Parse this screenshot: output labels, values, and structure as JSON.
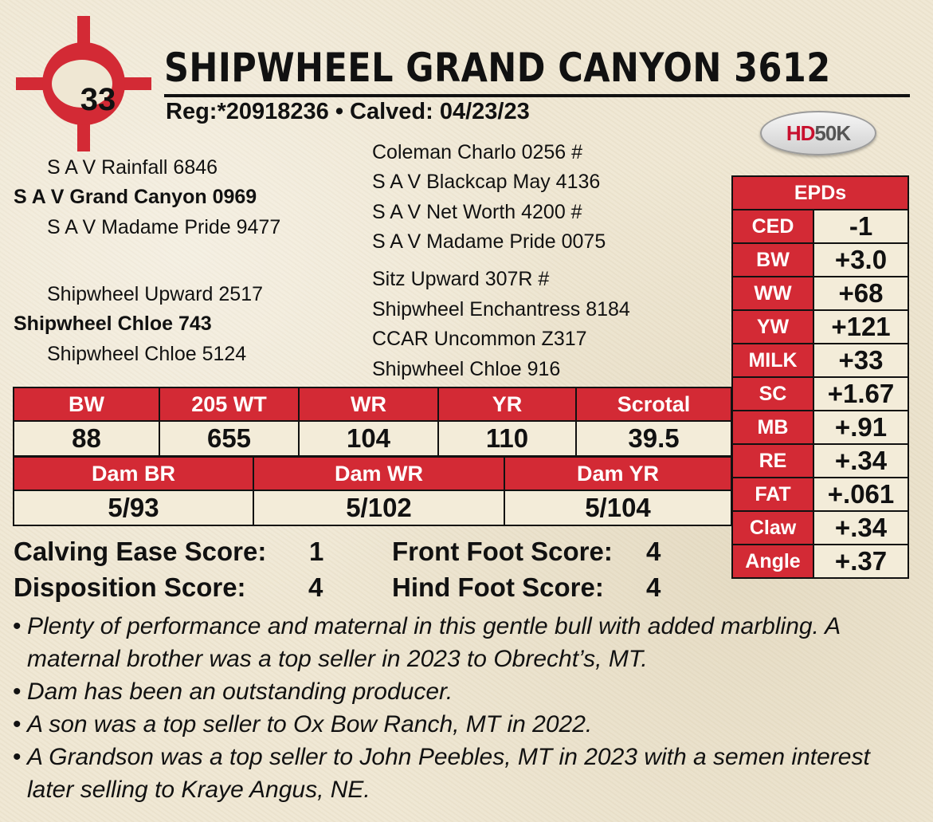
{
  "lot": {
    "number": "33"
  },
  "animal": {
    "name": "SHIPWHEEL GRAND CANYON 3612",
    "reg_line": "Reg:*20918236 • Calved: 04/23/23"
  },
  "badge": {
    "hd": "HD",
    "rest": "50K"
  },
  "pedigree": {
    "sire_sire": "S A V Rainfall 6846",
    "sire": "S A V Grand Canyon 0969",
    "sire_dam": "S A V Madame Pride 9477",
    "dam_sire": "Shipwheel Upward 2517",
    "dam": "Shipwheel Chloe 743",
    "dam_dam": "Shipwheel Chloe 5124",
    "g1": "Coleman Charlo 0256 #",
    "g2": "S A V Blackcap May 4136",
    "g3": "S A V Net Worth 4200 #",
    "g4": "S A V Madame Pride 0075",
    "g5": "Sitz Upward 307R #",
    "g6": "Shipwheel Enchantress 8184",
    "g7": "CCAR Uncommon Z317",
    "g8": "Shipwheel Chloe 916"
  },
  "epds": {
    "header": "EPDs",
    "rows": [
      {
        "label": "CED",
        "value": "-1"
      },
      {
        "label": "BW",
        "value": "+3.0"
      },
      {
        "label": "WW",
        "value": "+68"
      },
      {
        "label": "YW",
        "value": "+121"
      },
      {
        "label": "MILK",
        "value": "+33"
      },
      {
        "label": "SC",
        "value": "+1.67"
      },
      {
        "label": "MB",
        "value": "+.91"
      },
      {
        "label": "RE",
        "value": "+.34"
      },
      {
        "label": "FAT",
        "value": "+.061"
      },
      {
        "label": "Claw",
        "value": "+.34"
      },
      {
        "label": "Angle",
        "value": "+.37"
      }
    ]
  },
  "performance": {
    "headers": [
      "BW",
      "205 WT",
      "WR",
      "YR",
      "Scrotal"
    ],
    "values": [
      "88",
      "655",
      "104",
      "110",
      "39.5"
    ]
  },
  "dam_ratios": {
    "headers": [
      "Dam BR",
      "Dam WR",
      "Dam YR"
    ],
    "values": [
      "5/93",
      "5/102",
      "5/104"
    ]
  },
  "scores": {
    "calving_ease_label": "Calving Ease Score:",
    "calving_ease_value": "1",
    "disposition_label": "Disposition Score:",
    "disposition_value": "4",
    "front_foot_label": "Front Foot Score:",
    "front_foot_value": "4",
    "hind_foot_label": "Hind Foot Score:",
    "hind_foot_value": "4"
  },
  "notes": [
    "Plenty of performance and maternal in this gentle bull with added marbling.  A maternal brother was a top seller in 2023 to Obrecht’s, MT.",
    "Dam has been an outstanding producer.",
    "A son was a top seller to Ox Bow Ranch, MT in 2022.",
    "A Grandson was a top seller to John Peebles, MT in 2023 with a semen interest later selling to Kraye Angus, NE."
  ],
  "colors": {
    "accent_red": "#d32a35",
    "background": "#efe7d3"
  }
}
